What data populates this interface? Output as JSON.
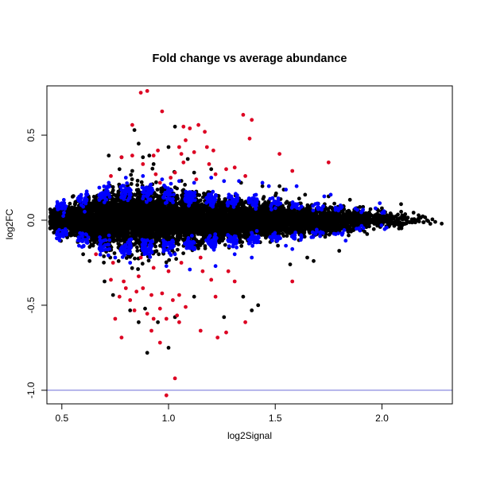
{
  "chart_data": {
    "type": "scatter",
    "title": "Fold change vs average abundance",
    "xlabel": "log2Signal",
    "ylabel": "log2FC",
    "xlim": [
      0.43,
      2.33
    ],
    "ylim": [
      -1.08,
      0.79
    ],
    "x_ticks": [
      0.5,
      1.0,
      1.5,
      2.0
    ],
    "x_tick_labels": [
      "0.5",
      "1.0",
      "1.5",
      "2.0"
    ],
    "y_ticks": [
      -1.0,
      -0.5,
      0.0,
      0.5
    ],
    "y_tick_labels": [
      "-1.0",
      "-0.5",
      "0.0",
      "0.5"
    ],
    "hline": {
      "y": -1.0,
      "color": "#6b6bd8"
    },
    "grid": false,
    "legend": "none",
    "colors": {
      "black": "#000000",
      "blue": "#0000ff",
      "red": "#dd0022"
    },
    "series": [
      {
        "color": "black",
        "bands": [
          {
            "x": 0.47,
            "mean": 0.0,
            "sd": 0.03,
            "n": 200
          },
          {
            "x": 0.52,
            "mean": 0.0,
            "sd": 0.035,
            "n": 260
          },
          {
            "x": 0.57,
            "mean": 0.0,
            "sd": 0.045,
            "n": 300
          },
          {
            "x": 0.62,
            "mean": 0.0,
            "sd": 0.055,
            "n": 320
          },
          {
            "x": 0.67,
            "mean": 0.0,
            "sd": 0.065,
            "n": 330
          },
          {
            "x": 0.72,
            "mean": 0.0,
            "sd": 0.075,
            "n": 330
          },
          {
            "x": 0.77,
            "mean": 0.0,
            "sd": 0.08,
            "n": 330
          },
          {
            "x": 0.82,
            "mean": 0.0,
            "sd": 0.085,
            "n": 330
          },
          {
            "x": 0.87,
            "mean": 0.0,
            "sd": 0.085,
            "n": 330
          },
          {
            "x": 0.92,
            "mean": 0.0,
            "sd": 0.085,
            "n": 330
          },
          {
            "x": 0.97,
            "mean": 0.0,
            "sd": 0.08,
            "n": 330
          },
          {
            "x": 1.02,
            "mean": 0.0,
            "sd": 0.075,
            "n": 330
          },
          {
            "x": 1.07,
            "mean": 0.0,
            "sd": 0.07,
            "n": 330
          },
          {
            "x": 1.12,
            "mean": 0.0,
            "sd": 0.065,
            "n": 320
          },
          {
            "x": 1.17,
            "mean": 0.0,
            "sd": 0.06,
            "n": 310
          },
          {
            "x": 1.22,
            "mean": 0.0,
            "sd": 0.058,
            "n": 300
          },
          {
            "x": 1.27,
            "mean": 0.0,
            "sd": 0.055,
            "n": 290
          },
          {
            "x": 1.32,
            "mean": 0.0,
            "sd": 0.052,
            "n": 280
          },
          {
            "x": 1.37,
            "mean": 0.0,
            "sd": 0.05,
            "n": 270
          },
          {
            "x": 1.42,
            "mean": 0.0,
            "sd": 0.048,
            "n": 260
          },
          {
            "x": 1.47,
            "mean": 0.0,
            "sd": 0.046,
            "n": 250
          },
          {
            "x": 1.52,
            "mean": 0.0,
            "sd": 0.044,
            "n": 240
          },
          {
            "x": 1.57,
            "mean": 0.0,
            "sd": 0.042,
            "n": 220
          },
          {
            "x": 1.62,
            "mean": 0.0,
            "sd": 0.04,
            "n": 200
          },
          {
            "x": 1.67,
            "mean": 0.0,
            "sd": 0.038,
            "n": 180
          },
          {
            "x": 1.72,
            "mean": 0.0,
            "sd": 0.036,
            "n": 160
          },
          {
            "x": 1.77,
            "mean": 0.0,
            "sd": 0.034,
            "n": 140
          },
          {
            "x": 1.82,
            "mean": 0.0,
            "sd": 0.032,
            "n": 120
          },
          {
            "x": 1.87,
            "mean": 0.0,
            "sd": 0.03,
            "n": 100
          },
          {
            "x": 1.92,
            "mean": 0.0,
            "sd": 0.028,
            "n": 80
          },
          {
            "x": 1.97,
            "mean": 0.0,
            "sd": 0.026,
            "n": 60
          },
          {
            "x": 2.02,
            "mean": 0.0,
            "sd": 0.024,
            "n": 45
          },
          {
            "x": 2.07,
            "mean": 0.0,
            "sd": 0.022,
            "n": 30
          },
          {
            "x": 2.12,
            "mean": 0.0,
            "sd": 0.02,
            "n": 20
          },
          {
            "x": 2.17,
            "mean": 0.0,
            "sd": 0.018,
            "n": 12
          },
          {
            "x": 2.22,
            "mean": 0.0,
            "sd": 0.016,
            "n": 6
          }
        ],
        "points": [
          [
            0.84,
            0.53
          ],
          [
            0.86,
            0.45
          ],
          [
            1.03,
            0.55
          ],
          [
            1.0,
            0.43
          ],
          [
            0.91,
            0.38
          ],
          [
            0.93,
            0.33
          ],
          [
            0.78,
            0.37
          ],
          [
            0.72,
            0.38
          ],
          [
            0.88,
            0.37
          ],
          [
            1.09,
            0.36
          ],
          [
            0.95,
            -0.6
          ],
          [
            0.86,
            -0.6
          ],
          [
            0.89,
            -0.52
          ],
          [
            0.82,
            -0.53
          ],
          [
            0.9,
            -0.78
          ],
          [
            1.0,
            -0.75
          ],
          [
            1.03,
            -0.57
          ],
          [
            1.35,
            -0.45
          ],
          [
            1.39,
            -0.53
          ],
          [
            1.42,
            -0.5
          ],
          [
            1.12,
            -0.45
          ],
          [
            1.26,
            -0.57
          ],
          [
            0.74,
            -0.44
          ],
          [
            0.7,
            -0.36
          ],
          [
            0.63,
            -0.24
          ],
          [
            0.6,
            -0.2
          ],
          [
            1.57,
            -0.26
          ],
          [
            1.65,
            -0.22
          ],
          [
            1.68,
            -0.24
          ],
          [
            1.8,
            -0.18
          ],
          [
            2.0,
            0.07
          ],
          [
            2.09,
            0.05
          ],
          [
            2.25,
            -0.01
          ],
          [
            2.28,
            -0.02
          ],
          [
            0.77,
            0.3
          ],
          [
            0.83,
            0.29
          ],
          [
            1.12,
            0.28
          ],
          [
            1.2,
            0.3
          ],
          [
            1.34,
            0.22
          ],
          [
            1.44,
            0.2
          ],
          [
            1.54,
            0.18
          ],
          [
            1.64,
            0.15
          ],
          [
            1.52,
            0.2
          ],
          [
            1.75,
            0.14
          ],
          [
            1.85,
            0.12
          ]
        ]
      },
      {
        "color": "blue",
        "bands": [
          {
            "x": 0.5,
            "mean": 0.08,
            "sd": 0.02,
            "n": 20
          },
          {
            "x": 0.5,
            "mean": -0.08,
            "sd": 0.02,
            "n": 20
          },
          {
            "x": 0.6,
            "mean": 0.12,
            "sd": 0.025,
            "n": 25
          },
          {
            "x": 0.6,
            "mean": -0.12,
            "sd": 0.025,
            "n": 25
          },
          {
            "x": 0.7,
            "mean": 0.15,
            "sd": 0.025,
            "n": 30
          },
          {
            "x": 0.7,
            "mean": -0.15,
            "sd": 0.025,
            "n": 30
          },
          {
            "x": 0.8,
            "mean": 0.16,
            "sd": 0.025,
            "n": 35
          },
          {
            "x": 0.8,
            "mean": -0.16,
            "sd": 0.025,
            "n": 35
          },
          {
            "x": 0.9,
            "mean": 0.16,
            "sd": 0.025,
            "n": 35
          },
          {
            "x": 0.9,
            "mean": -0.16,
            "sd": 0.025,
            "n": 35
          },
          {
            "x": 1.0,
            "mean": 0.15,
            "sd": 0.025,
            "n": 35
          },
          {
            "x": 1.0,
            "mean": -0.15,
            "sd": 0.025,
            "n": 35
          },
          {
            "x": 1.1,
            "mean": 0.14,
            "sd": 0.022,
            "n": 35
          },
          {
            "x": 1.1,
            "mean": -0.14,
            "sd": 0.022,
            "n": 35
          },
          {
            "x": 1.2,
            "mean": 0.13,
            "sd": 0.02,
            "n": 32
          },
          {
            "x": 1.2,
            "mean": -0.13,
            "sd": 0.02,
            "n": 32
          },
          {
            "x": 1.3,
            "mean": 0.12,
            "sd": 0.018,
            "n": 30
          },
          {
            "x": 1.3,
            "mean": -0.12,
            "sd": 0.018,
            "n": 30
          },
          {
            "x": 1.4,
            "mean": 0.11,
            "sd": 0.016,
            "n": 25
          },
          {
            "x": 1.4,
            "mean": -0.11,
            "sd": 0.016,
            "n": 25
          },
          {
            "x": 1.5,
            "mean": 0.1,
            "sd": 0.015,
            "n": 20
          },
          {
            "x": 1.5,
            "mean": -0.1,
            "sd": 0.015,
            "n": 20
          },
          {
            "x": 1.6,
            "mean": 0.09,
            "sd": 0.014,
            "n": 15
          },
          {
            "x": 1.6,
            "mean": -0.09,
            "sd": 0.014,
            "n": 15
          },
          {
            "x": 1.7,
            "mean": 0.08,
            "sd": 0.013,
            "n": 12
          },
          {
            "x": 1.7,
            "mean": -0.08,
            "sd": 0.013,
            "n": 12
          },
          {
            "x": 1.8,
            "mean": 0.07,
            "sd": 0.012,
            "n": 8
          },
          {
            "x": 1.8,
            "mean": -0.07,
            "sd": 0.012,
            "n": 8
          },
          {
            "x": 1.9,
            "mean": 0.06,
            "sd": 0.01,
            "n": 5
          },
          {
            "x": 1.9,
            "mean": -0.06,
            "sd": 0.01,
            "n": 5
          },
          {
            "x": 2.0,
            "mean": 0.05,
            "sd": 0.01,
            "n": 3
          },
          {
            "x": 2.0,
            "mean": -0.05,
            "sd": 0.01,
            "n": 3
          }
        ],
        "points": [
          [
            1.33,
            0.23
          ],
          [
            1.47,
            0.2
          ],
          [
            1.55,
            0.18
          ],
          [
            1.6,
            0.2
          ],
          [
            1.73,
            0.14
          ],
          [
            1.76,
            0.15
          ],
          [
            1.99,
            0.1
          ],
          [
            1.97,
            0.07
          ],
          [
            1.83,
            -0.12
          ],
          [
            1.67,
            -0.1
          ],
          [
            1.55,
            -0.15
          ],
          [
            1.58,
            -0.17
          ],
          [
            1.39,
            -0.22
          ],
          [
            1.22,
            -0.27
          ],
          [
            1.1,
            -0.29
          ],
          [
            0.99,
            -0.27
          ],
          [
            0.91,
            -0.2
          ],
          [
            0.82,
            -0.25
          ],
          [
            0.75,
            -0.22
          ],
          [
            1.31,
            -0.2
          ],
          [
            0.72,
            0.22
          ],
          [
            0.8,
            0.25
          ],
          [
            0.88,
            0.26
          ],
          [
            0.97,
            0.24
          ],
          [
            1.05,
            0.23
          ],
          [
            1.12,
            0.22
          ],
          [
            1.2,
            0.25
          ],
          [
            1.26,
            0.23
          ],
          [
            1.44,
            0.22
          ],
          [
            1.03,
            -0.2
          ]
        ]
      },
      {
        "color": "red",
        "points": [
          [
            0.9,
            0.76
          ],
          [
            0.87,
            0.75
          ],
          [
            1.35,
            0.62
          ],
          [
            1.39,
            0.59
          ],
          [
            0.97,
            0.64
          ],
          [
            0.83,
            0.56
          ],
          [
            1.07,
            0.55
          ],
          [
            1.1,
            0.54
          ],
          [
            1.14,
            0.56
          ],
          [
            1.17,
            0.52
          ],
          [
            1.38,
            0.48
          ],
          [
            1.08,
            0.47
          ],
          [
            1.05,
            0.43
          ],
          [
            1.18,
            0.43
          ],
          [
            0.95,
            0.41
          ],
          [
            0.93,
            0.38
          ],
          [
            0.83,
            0.38
          ],
          [
            0.78,
            0.37
          ],
          [
            1.06,
            0.39
          ],
          [
            1.12,
            0.4
          ],
          [
            1.21,
            0.41
          ],
          [
            1.52,
            0.39
          ],
          [
            1.75,
            0.34
          ],
          [
            0.88,
            0.33
          ],
          [
            1.07,
            0.34
          ],
          [
            1.19,
            0.33
          ],
          [
            1.31,
            0.31
          ],
          [
            1.27,
            0.3
          ],
          [
            1.58,
            0.29
          ],
          [
            1.03,
            0.28
          ],
          [
            0.94,
            0.27
          ],
          [
            1.01,
            0.25
          ],
          [
            0.73,
            0.26
          ],
          [
            1.22,
            0.27
          ],
          [
            1.36,
            0.26
          ],
          [
            1.13,
            0.24
          ],
          [
            0.96,
            0.22
          ],
          [
            1.0,
            -0.3
          ],
          [
            0.93,
            -0.28
          ],
          [
            0.86,
            -0.33
          ],
          [
            0.79,
            -0.36
          ],
          [
            0.73,
            -0.35
          ],
          [
            0.8,
            -0.4
          ],
          [
            0.85,
            -0.42
          ],
          [
            0.88,
            -0.4
          ],
          [
            0.92,
            -0.44
          ],
          [
            0.97,
            -0.43
          ],
          [
            1.02,
            -0.47
          ],
          [
            1.05,
            -0.44
          ],
          [
            0.82,
            -0.47
          ],
          [
            0.77,
            -0.45
          ],
          [
            0.84,
            -0.53
          ],
          [
            0.9,
            -0.55
          ],
          [
            0.96,
            -0.52
          ],
          [
            1.04,
            -0.56
          ],
          [
            0.99,
            -0.58
          ],
          [
            0.93,
            -0.58
          ],
          [
            0.75,
            -0.58
          ],
          [
            0.78,
            -0.69
          ],
          [
            0.92,
            -0.65
          ],
          [
            1.05,
            -0.6
          ],
          [
            1.15,
            -0.65
          ],
          [
            1.27,
            -0.66
          ],
          [
            1.23,
            -0.69
          ],
          [
            1.36,
            -0.6
          ],
          [
            0.96,
            -0.72
          ],
          [
            1.03,
            -0.93
          ],
          [
            0.99,
            -1.03
          ],
          [
            1.08,
            -0.51
          ],
          [
            1.22,
            -0.45
          ],
          [
            1.16,
            -0.3
          ],
          [
            1.2,
            -0.35
          ],
          [
            1.28,
            -0.3
          ],
          [
            1.31,
            -0.36
          ],
          [
            1.58,
            -0.36
          ],
          [
            1.06,
            -0.25
          ],
          [
            0.87,
            -0.22
          ],
          [
            0.74,
            -0.25
          ],
          [
            1.15,
            -0.22
          ],
          [
            0.66,
            -0.2
          ]
        ]
      }
    ]
  }
}
